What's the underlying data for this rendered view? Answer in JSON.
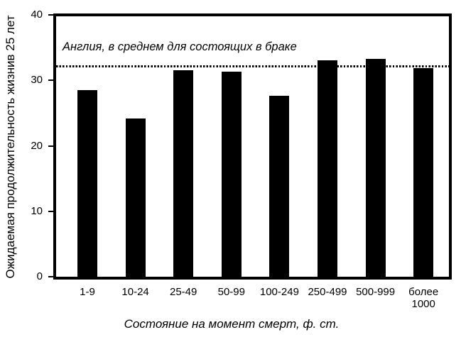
{
  "chart_data": {
    "type": "bar",
    "title": "",
    "categories": [
      "1-9",
      "10-24",
      "25-49",
      "50-99",
      "100-249",
      "250-499",
      "500-999",
      "более 1000"
    ],
    "values": [
      28.5,
      24.2,
      31.6,
      31.3,
      27.7,
      33.1,
      33.3,
      31.9
    ],
    "xlabel": "Состояние на момент смерт, ф. ст.",
    "ylabel": "Ожидаемая продолжительность жизнив 25 лет",
    "ylim": [
      0,
      40
    ],
    "yticks": [
      0,
      10,
      20,
      30,
      40
    ],
    "bar_color": "#000000",
    "background_color": "#ffffff",
    "grid": false,
    "legend": false,
    "reference_line": {
      "value": 32.3,
      "style": "dotted",
      "label": "Англия, в среднем для состоящих в браке"
    }
  }
}
